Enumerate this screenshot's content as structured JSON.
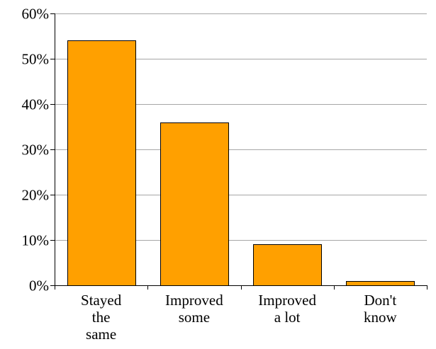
{
  "chart_data": {
    "type": "bar",
    "title": "",
    "xlabel": "",
    "ylabel": "",
    "categories": [
      [
        "Stayed",
        "the",
        "same"
      ],
      [
        "Improved",
        "some"
      ],
      [
        "Improved",
        "a lot"
      ],
      [
        "Don't",
        "know"
      ]
    ],
    "values": [
      54,
      36,
      9,
      1
    ],
    "ylim": [
      0,
      60
    ],
    "yticks": [
      0,
      10,
      20,
      30,
      40,
      50,
      60
    ],
    "ytick_format": "percent",
    "grid": true,
    "legend": "none",
    "colors": {
      "bar_fill": "#FFA000",
      "bar_stroke": "#000000",
      "grid": "#A6A6A6",
      "axis": "#000000"
    }
  }
}
